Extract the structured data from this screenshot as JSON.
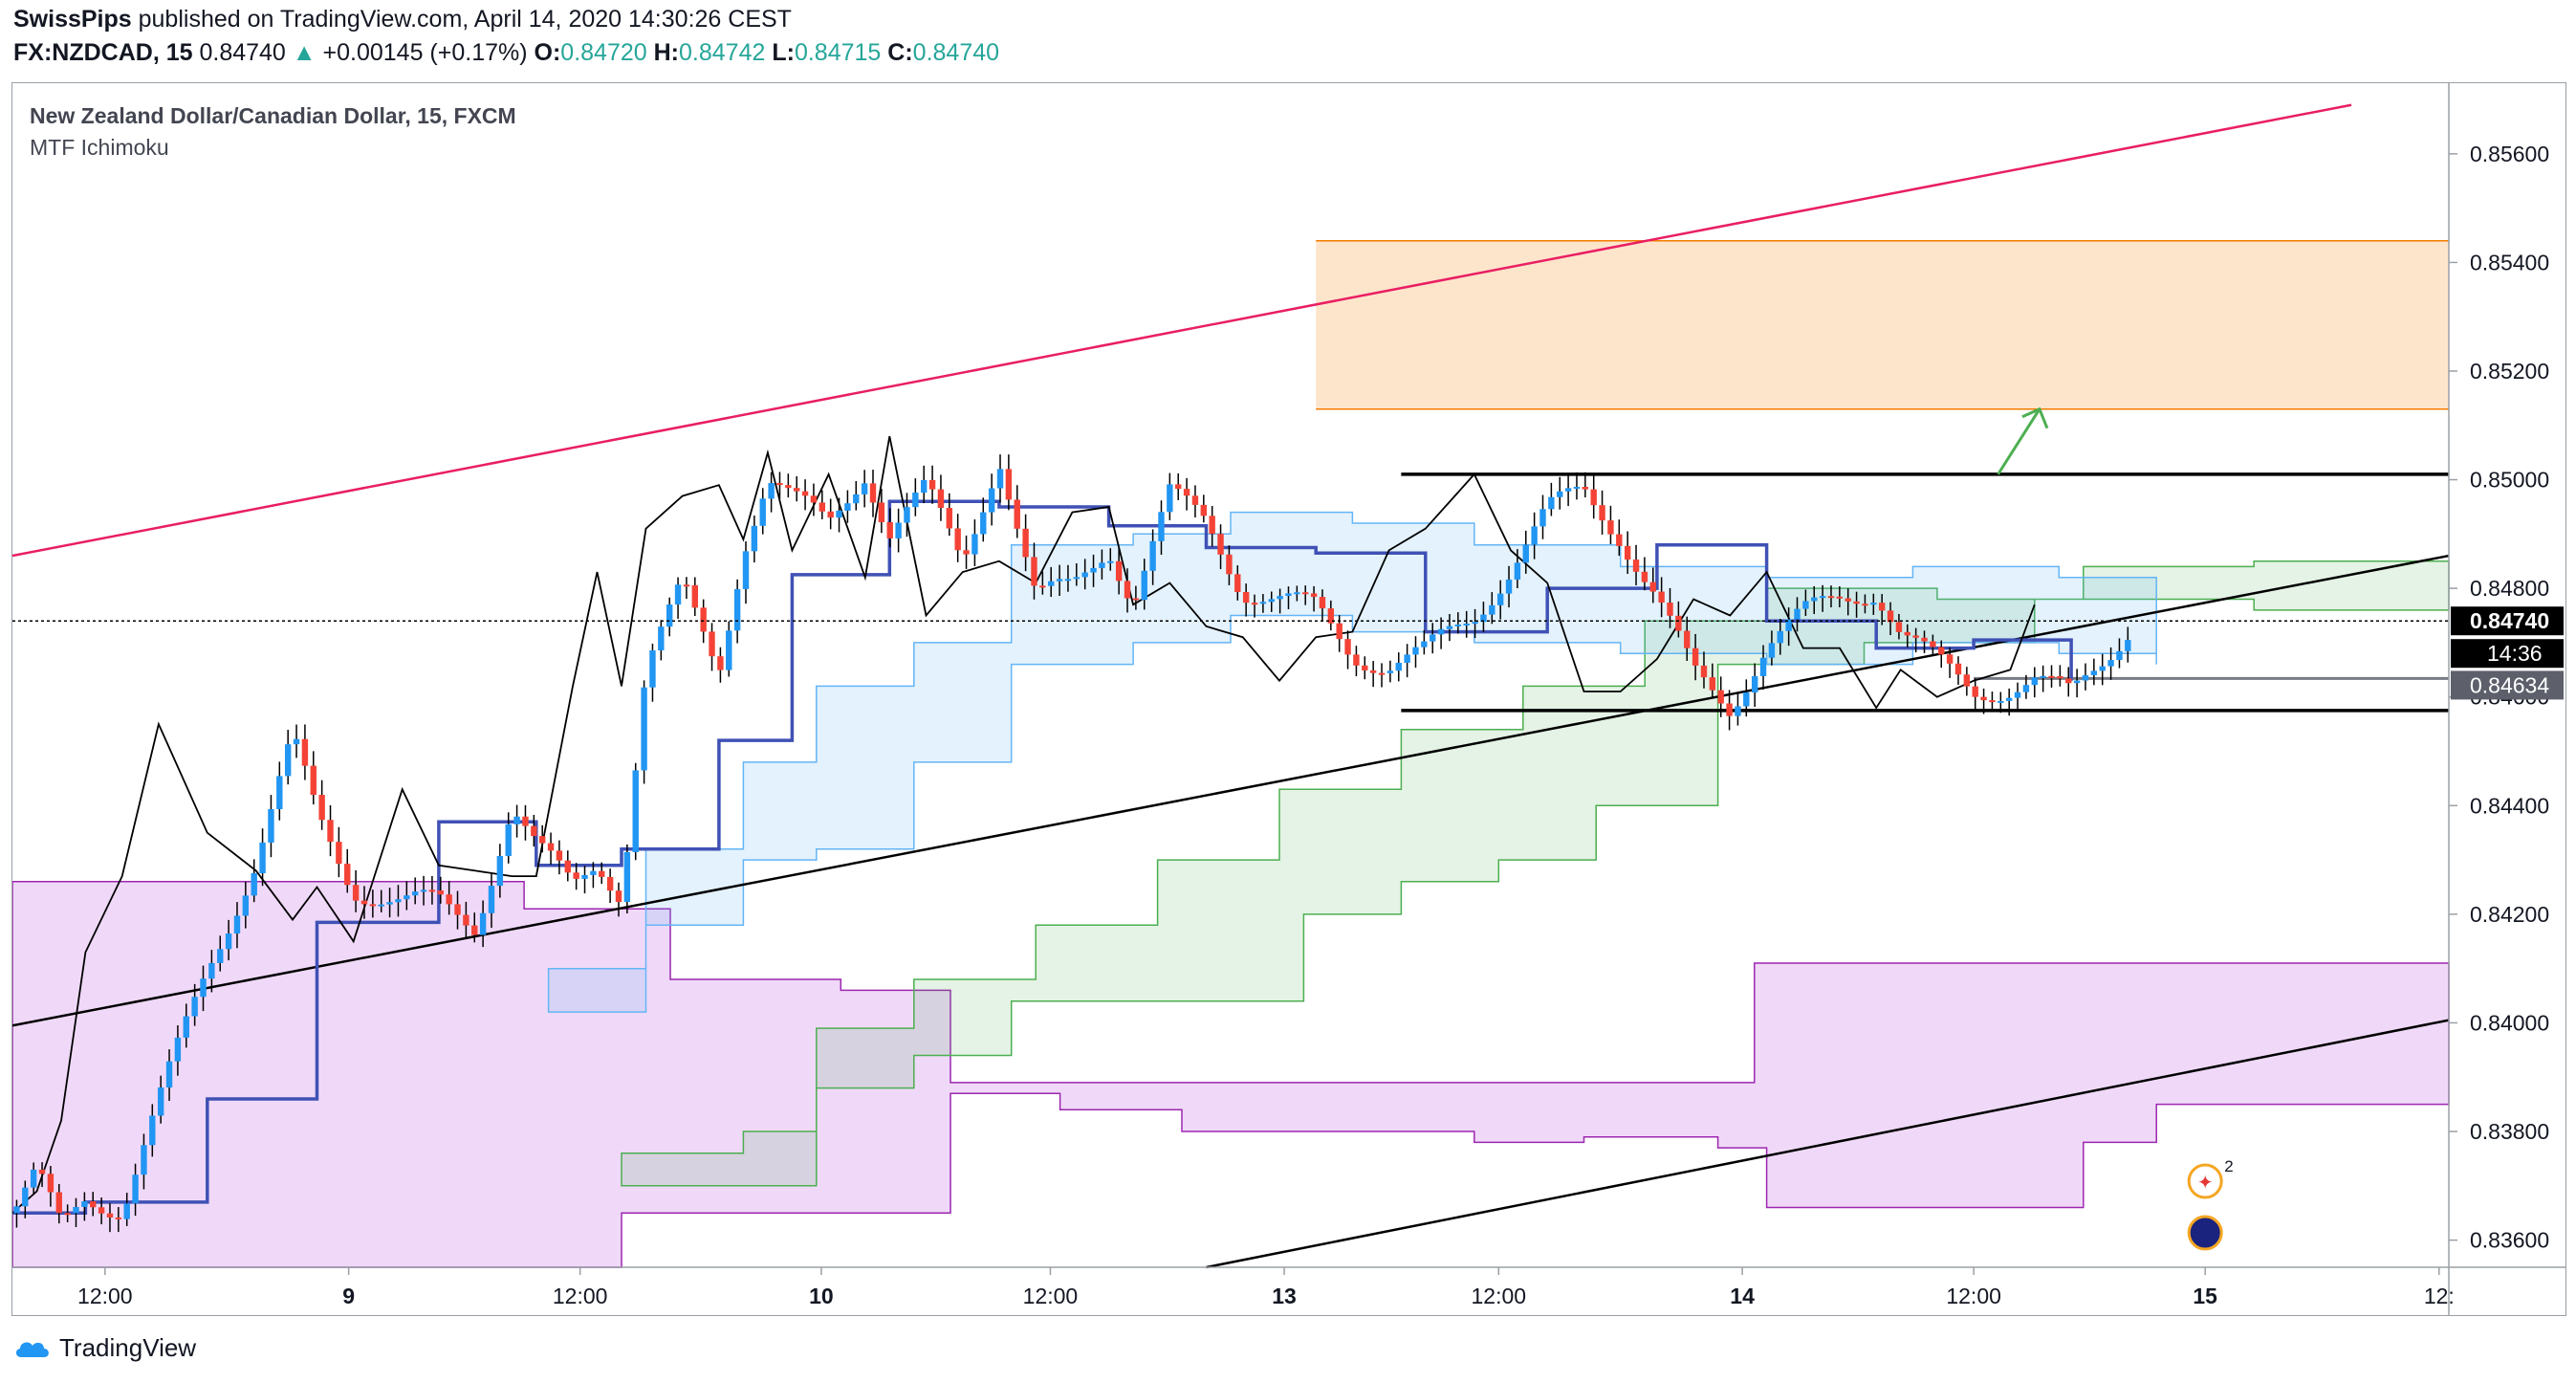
{
  "header": {
    "publisher": "SwissPips",
    "published_text": "published on TradingView.com, April 14, 2020 14:30:26 CEST",
    "symbol": "FX:NZDCAD, 15",
    "last": "0.84740",
    "change": "+0.00145 (+0.17%)",
    "o_label": "O:",
    "o": "0.84720",
    "h_label": "H:",
    "h": "0.84742",
    "l_label": "L:",
    "l": "0.84715",
    "c_label": "C:",
    "c": "0.84740"
  },
  "brand": "TradingView",
  "colors": {
    "up": "#2196f3",
    "down": "#f44336",
    "upper_channel": "#e91e63",
    "supply_zone": "#f57c00",
    "kumo_green": "#4caf50",
    "kumo_purple": "#9c27b0",
    "kumo_blue": "#64b5f6",
    "kijun": "#3f51b5",
    "price_label_bg": "#000000",
    "level_label_bg": "#5d606b"
  },
  "chart_data": {
    "type": "candlestick",
    "title": "New Zealand Dollar/Canadian Dollar, 15, FXCM",
    "indicator": "MTF Ichimoku",
    "ylim": [
      0.8355,
      0.8573
    ],
    "y_ticks": [
      "0.85600",
      "0.85400",
      "0.85200",
      "0.85000",
      "0.84800",
      "0.84600",
      "0.84400",
      "0.84200",
      "0.84000",
      "0.83800",
      "0.83600"
    ],
    "x_ticks": [
      "12:00",
      "9",
      "12:00",
      "10",
      "12:00",
      "13",
      "12:00",
      "14",
      "12:00",
      "15",
      "12:"
    ],
    "price_label": "0.84740",
    "countdown": "14:36",
    "level_label": "0.84634",
    "series_path": [
      [
        0,
        0.8365
      ],
      [
        0.01,
        0.8372
      ],
      [
        0.02,
        0.8362
      ],
      [
        0.03,
        0.8368
      ],
      [
        0.045,
        0.8366
      ],
      [
        0.06,
        0.8385
      ],
      [
        0.08,
        0.841
      ],
      [
        0.1,
        0.843
      ],
      [
        0.115,
        0.8452
      ],
      [
        0.125,
        0.8438
      ],
      [
        0.14,
        0.8425
      ],
      [
        0.16,
        0.8422
      ],
      [
        0.175,
        0.8422
      ],
      [
        0.19,
        0.8418
      ],
      [
        0.205,
        0.844
      ],
      [
        0.215,
        0.8432
      ],
      [
        0.23,
        0.8425
      ],
      [
        0.24,
        0.843
      ],
      [
        0.25,
        0.8424
      ],
      [
        0.26,
        0.8465
      ],
      [
        0.275,
        0.848
      ],
      [
        0.29,
        0.8465
      ],
      [
        0.3,
        0.8488
      ],
      [
        0.31,
        0.85
      ],
      [
        0.32,
        0.8496
      ],
      [
        0.335,
        0.8492
      ],
      [
        0.35,
        0.8502
      ],
      [
        0.36,
        0.849
      ],
      [
        0.375,
        0.8498
      ],
      [
        0.39,
        0.8485
      ],
      [
        0.405,
        0.8505
      ],
      [
        0.42,
        0.8478
      ],
      [
        0.435,
        0.848
      ],
      [
        0.45,
        0.8488
      ],
      [
        0.46,
        0.8478
      ],
      [
        0.475,
        0.8497
      ],
      [
        0.49,
        0.8492
      ],
      [
        0.505,
        0.848
      ],
      [
        0.52,
        0.8478
      ],
      [
        0.535,
        0.8476
      ],
      [
        0.55,
        0.8468
      ],
      [
        0.565,
        0.8466
      ],
      [
        0.58,
        0.8468
      ],
      [
        0.6,
        0.8475
      ],
      [
        0.615,
        0.8484
      ],
      [
        0.63,
        0.8494
      ],
      [
        0.645,
        0.8498
      ],
      [
        0.66,
        0.849
      ],
      [
        0.675,
        0.8478
      ],
      [
        0.69,
        0.8464
      ],
      [
        0.705,
        0.8458
      ],
      [
        0.72,
        0.847
      ],
      [
        0.735,
        0.8475
      ],
      [
        0.75,
        0.8478
      ],
      [
        0.765,
        0.848
      ],
      [
        0.775,
        0.8472
      ],
      [
        0.79,
        0.8466
      ],
      [
        0.805,
        0.8461
      ],
      [
        0.82,
        0.8462
      ],
      [
        0.83,
        0.8463
      ],
      [
        0.845,
        0.846
      ],
      [
        0.86,
        0.8468
      ],
      [
        0.87,
        0.8474
      ]
    ],
    "overlays": {
      "upper_channel": [
        [
          0.0,
          0.8486
        ],
        [
          0.96,
          0.8569
        ]
      ],
      "lower_trendline": [
        [
          0.0,
          0.83995
        ],
        [
          1.0,
          0.8486
        ]
      ],
      "bottom_trendline": [
        [
          0.49,
          0.8355
        ],
        [
          1.0,
          0.84005
        ]
      ],
      "resistance": 0.8501,
      "support": 0.84575,
      "level_line": 0.84634,
      "supply_zone": [
        0.8513,
        0.8544
      ],
      "arrow_target": 0.8513
    }
  }
}
